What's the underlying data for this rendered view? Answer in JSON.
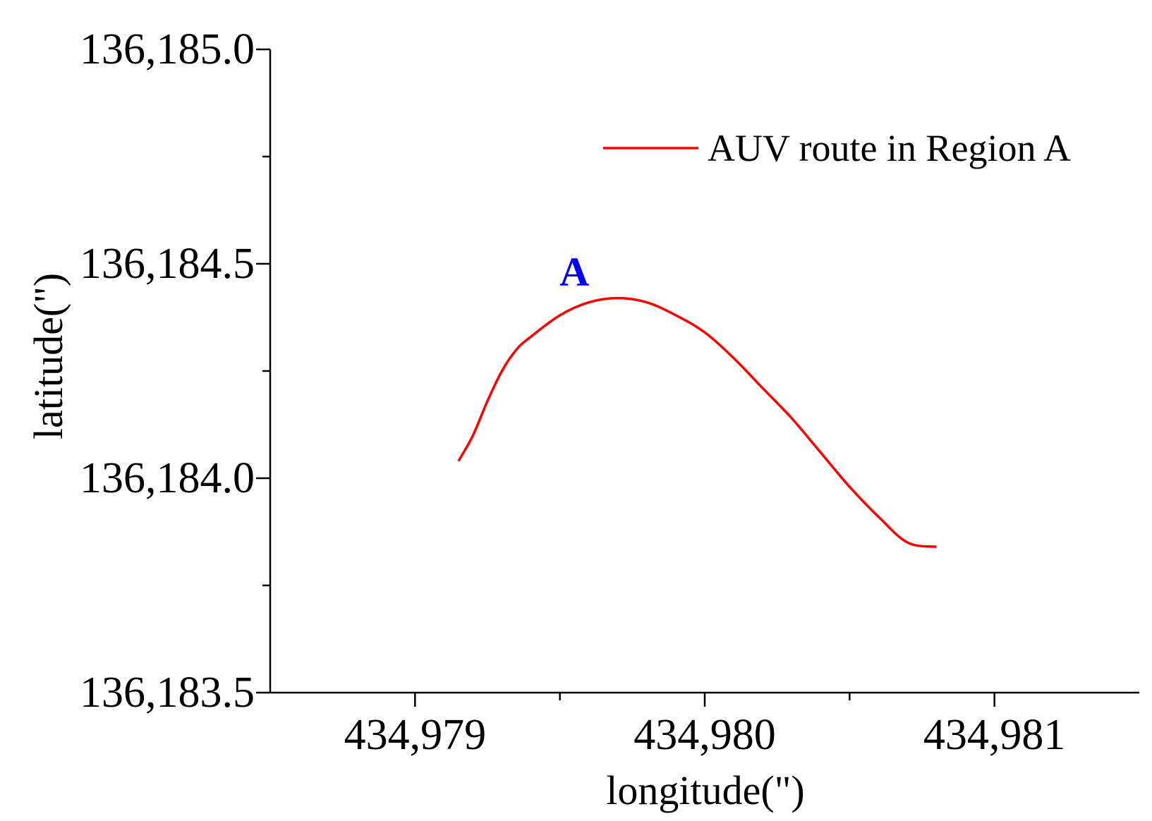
{
  "chart_data": {
    "type": "line",
    "xlabel": "longitude(\")",
    "ylabel": "latitude(\")",
    "xlim": [
      434978.5,
      434981.5
    ],
    "ylim": [
      136183.5,
      136185.0
    ],
    "x_major_ticks": [
      434979,
      434980,
      434981
    ],
    "x_minor_ticks": [
      434979.5,
      434980.5
    ],
    "x_tick_labels": [
      "434,979",
      "434,980",
      "434,981"
    ],
    "y_major_ticks": [
      136183.5,
      136184.0,
      136184.5,
      136185.0
    ],
    "y_minor_ticks": [
      136183.75,
      136184.25,
      136184.75
    ],
    "y_tick_labels": [
      "136,183.5",
      "136,184.0",
      "136,184.5",
      "136,185.0"
    ],
    "legend_position": "top-right",
    "series": [
      {
        "name": "AUV route in Region A",
        "color": "#ff0000",
        "x": [
          434979.15,
          434979.2,
          434979.25,
          434979.3,
          434979.35,
          434979.4,
          434979.5,
          434979.6,
          434979.7,
          434979.8,
          434979.9,
          434980.0,
          434980.1,
          434980.2,
          434980.3,
          434980.4,
          434980.5,
          434980.6,
          434980.7,
          434980.8
        ],
        "y": [
          136184.04,
          136184.1,
          136184.18,
          136184.25,
          136184.3,
          136184.33,
          136184.38,
          136184.41,
          136184.42,
          136184.41,
          136184.38,
          136184.34,
          136184.28,
          136184.21,
          136184.14,
          136184.06,
          136183.98,
          136183.91,
          136183.85,
          136183.84
        ]
      }
    ],
    "annotations": [
      {
        "text": "A",
        "x": 434979.55,
        "y": 136184.45,
        "color": "#0000ff"
      }
    ]
  }
}
